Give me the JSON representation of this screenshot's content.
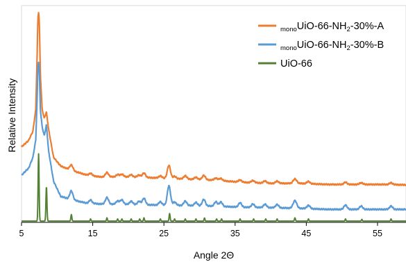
{
  "chart_data": {
    "type": "line",
    "xlabel": "Angle 2Θ",
    "ylabel": "Relative Intensity",
    "xlim": [
      5,
      59
    ],
    "ylim": [
      0,
      100
    ],
    "x_ticks": [
      5,
      15,
      25,
      35,
      45,
      55
    ],
    "x_tick_labels": [
      "5",
      "15",
      "25",
      "35",
      "45",
      "55"
    ],
    "grid": false,
    "legend_position": "top-right",
    "legend": [
      {
        "pre": "mono",
        "text": "UiO-66-NH",
        "sub": "2",
        "post": "-30%-A",
        "color": "#ED7D31"
      },
      {
        "pre": "mono",
        "text": "UiO-66-NH",
        "sub": "2",
        "post": "-30%-B",
        "color": "#5B9BD5"
      },
      {
        "pre": "",
        "text": "UiO-66",
        "sub": "",
        "post": "",
        "color": "#548235"
      }
    ],
    "series": [
      {
        "color": "#ED7D31",
        "baseline": [
          [
            5,
            34.8
          ],
          [
            6,
            37.8
          ],
          [
            6.6,
            42
          ],
          [
            7,
            52
          ],
          [
            7.2,
            78
          ],
          [
            7.3,
            94
          ],
          [
            7.4,
            97
          ],
          [
            7.5,
            93
          ],
          [
            7.65,
            68
          ],
          [
            7.9,
            52
          ],
          [
            8.2,
            48
          ],
          [
            8.5,
            51
          ],
          [
            8.8,
            43
          ],
          [
            9.5,
            30
          ],
          [
            10.5,
            26
          ],
          [
            12,
            24
          ],
          [
            14,
            22
          ],
          [
            16,
            21
          ],
          [
            20,
            21
          ],
          [
            24,
            20.5
          ],
          [
            28,
            20
          ],
          [
            32,
            19.5
          ],
          [
            36,
            18.5
          ],
          [
            40,
            18
          ],
          [
            44,
            18
          ],
          [
            48,
            17.5
          ],
          [
            52,
            17.5
          ],
          [
            56,
            17.5
          ],
          [
            59,
            17.3
          ]
        ],
        "peaks": [
          [
            12.0,
            2.5,
            0.22
          ],
          [
            14.7,
            1,
            0.2
          ],
          [
            17.0,
            2,
            0.22
          ],
          [
            18.5,
            1,
            0.22
          ],
          [
            19.1,
            1.2,
            0.22
          ],
          [
            20.4,
            1,
            0.22
          ],
          [
            21.5,
            1,
            0.22
          ],
          [
            22.2,
            2,
            0.22
          ],
          [
            24.5,
            1,
            0.22
          ],
          [
            25.7,
            6,
            0.22
          ],
          [
            26.5,
            1,
            0.22
          ],
          [
            28.0,
            1.5,
            0.22
          ],
          [
            29.5,
            1,
            0.22
          ],
          [
            30.6,
            2,
            0.22
          ],
          [
            32.3,
            1,
            0.22
          ],
          [
            33.0,
            1,
            0.22
          ],
          [
            35.7,
            1,
            0.22
          ],
          [
            37.5,
            1,
            0.22
          ],
          [
            39.2,
            1,
            0.22
          ],
          [
            40.9,
            1,
            0.22
          ],
          [
            43.4,
            2,
            0.25
          ],
          [
            45.3,
            1,
            0.22
          ],
          [
            50.5,
            1,
            0.22
          ],
          [
            52.7,
            0.8,
            0.22
          ],
          [
            56.9,
            0.8,
            0.22
          ]
        ]
      },
      {
        "color": "#5B9BD5",
        "baseline": [
          [
            5,
            21.8
          ],
          [
            6,
            25
          ],
          [
            6.6,
            30
          ],
          [
            7,
            38
          ],
          [
            7.2,
            58
          ],
          [
            7.3,
            72
          ],
          [
            7.4,
            74
          ],
          [
            7.5,
            70
          ],
          [
            7.65,
            52
          ],
          [
            7.9,
            44
          ],
          [
            8.2,
            40
          ],
          [
            8.5,
            45
          ],
          [
            8.8,
            33
          ],
          [
            9.5,
            19
          ],
          [
            10.5,
            12
          ],
          [
            12,
            10.5
          ],
          [
            14,
            9
          ],
          [
            16,
            8.5
          ],
          [
            20,
            8.3
          ],
          [
            24,
            8
          ],
          [
            28,
            7.8
          ],
          [
            32,
            7.5
          ],
          [
            36,
            7
          ],
          [
            40,
            6.8
          ],
          [
            44,
            6.5
          ],
          [
            48,
            6
          ],
          [
            52,
            6
          ],
          [
            56,
            6
          ],
          [
            59,
            6
          ]
        ],
        "peaks": [
          [
            12.0,
            4,
            0.22
          ],
          [
            14.7,
            1.5,
            0.2
          ],
          [
            17.0,
            3,
            0.22
          ],
          [
            18.5,
            1.5,
            0.22
          ],
          [
            19.1,
            2,
            0.22
          ],
          [
            20.4,
            1.5,
            0.22
          ],
          [
            21.5,
            1.5,
            0.22
          ],
          [
            22.2,
            3,
            0.22
          ],
          [
            24.5,
            1.5,
            0.22
          ],
          [
            25.7,
            9,
            0.22
          ],
          [
            26.5,
            1.5,
            0.22
          ],
          [
            28.0,
            2,
            0.22
          ],
          [
            29.5,
            1.5,
            0.22
          ],
          [
            30.6,
            3,
            0.22
          ],
          [
            32.3,
            2,
            0.22
          ],
          [
            33.0,
            2,
            0.22
          ],
          [
            35.7,
            2,
            0.22
          ],
          [
            37.5,
            1.5,
            0.22
          ],
          [
            39.2,
            1.5,
            0.22
          ],
          [
            40.9,
            1.5,
            0.22
          ],
          [
            43.4,
            3.5,
            0.25
          ],
          [
            45.3,
            1.5,
            0.22
          ],
          [
            50.5,
            2,
            0.22
          ],
          [
            52.7,
            1.5,
            0.22
          ],
          [
            56.9,
            1.5,
            0.22
          ]
        ]
      },
      {
        "color": "#548235",
        "baseline": [
          [
            5,
            0.6
          ],
          [
            59,
            0.6
          ]
        ],
        "peaks": [
          [
            7.4,
            31,
            0.07
          ],
          [
            8.5,
            16,
            0.07
          ],
          [
            12.0,
            3,
            0.07
          ],
          [
            14.7,
            1,
            0.06
          ],
          [
            17.0,
            1.5,
            0.06
          ],
          [
            18.5,
            1,
            0.06
          ],
          [
            19.1,
            1,
            0.06
          ],
          [
            20.4,
            1,
            0.06
          ],
          [
            21.6,
            1,
            0.06
          ],
          [
            22.2,
            1.5,
            0.06
          ],
          [
            24.5,
            1,
            0.06
          ],
          [
            25.8,
            3.5,
            0.07
          ],
          [
            26.5,
            1,
            0.06
          ],
          [
            28.0,
            1,
            0.06
          ],
          [
            29.5,
            1,
            0.06
          ],
          [
            30.7,
            1.5,
            0.06
          ],
          [
            32.4,
            1,
            0.06
          ],
          [
            33.1,
            1,
            0.06
          ],
          [
            35.7,
            1,
            0.06
          ],
          [
            37.6,
            1,
            0.06
          ],
          [
            39.3,
            1,
            0.06
          ],
          [
            40.9,
            1,
            0.06
          ],
          [
            43.4,
            1.5,
            0.07
          ],
          [
            45.3,
            1,
            0.06
          ],
          [
            50.5,
            1,
            0.06
          ],
          [
            52.8,
            0.8,
            0.06
          ],
          [
            56.9,
            1,
            0.06
          ]
        ]
      }
    ]
  }
}
